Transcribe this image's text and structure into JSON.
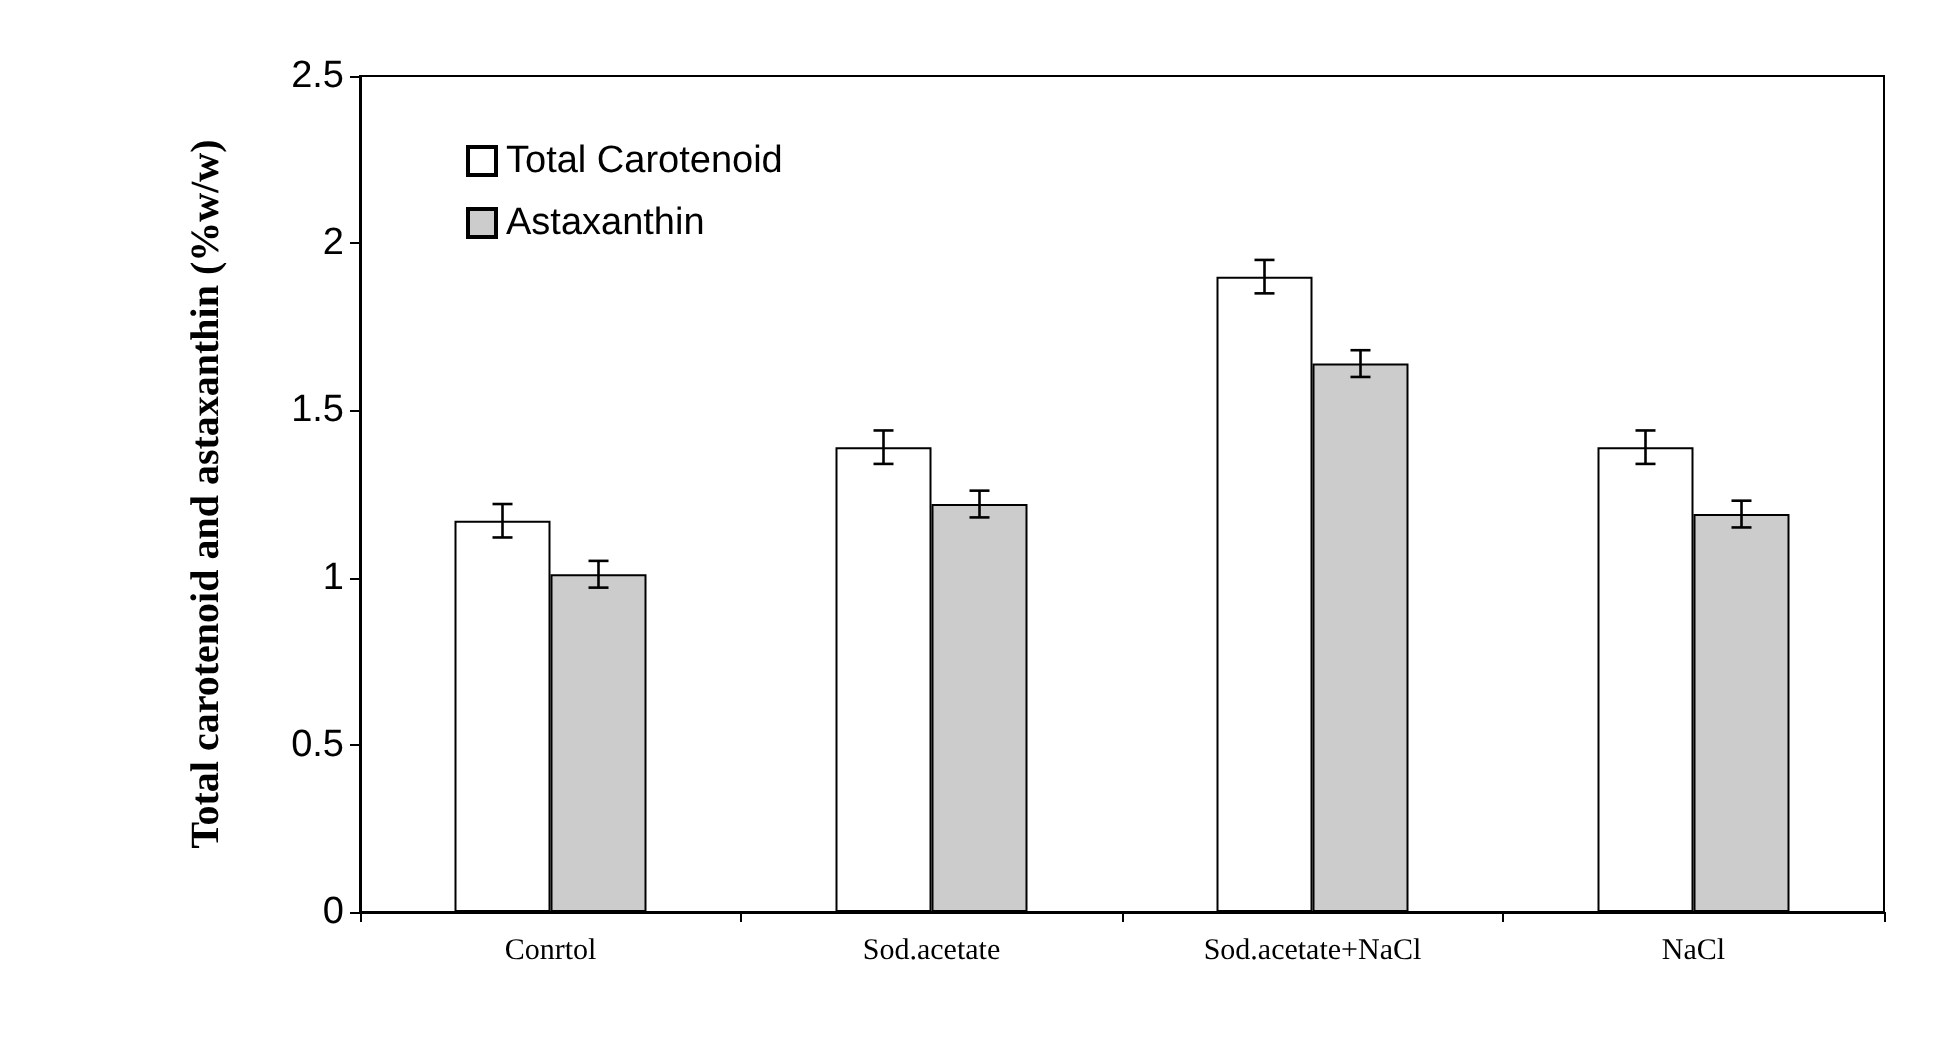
{
  "chart_data": {
    "type": "bar",
    "ylabel": "Total carotenoid and astaxanthin (%w/w)",
    "categories": [
      "Conrtol",
      "Sod.acetate",
      "Sod.acetate+NaCl",
      "NaCl"
    ],
    "series": [
      {
        "name": "Total Carotenoid",
        "color": "#ffffff",
        "values": [
          1.17,
          1.39,
          1.9,
          1.39
        ],
        "errors": [
          0.05,
          0.05,
          0.05,
          0.05
        ]
      },
      {
        "name": "Astaxanthin",
        "color": "#cccccc",
        "values": [
          1.01,
          1.22,
          1.64,
          1.19
        ],
        "errors": [
          0.04,
          0.04,
          0.04,
          0.04
        ]
      }
    ],
    "ylim": [
      0,
      2.5
    ],
    "yticks": [
      0,
      0.5,
      1,
      1.5,
      2,
      2.5
    ],
    "grid": false,
    "legend": "top left"
  }
}
